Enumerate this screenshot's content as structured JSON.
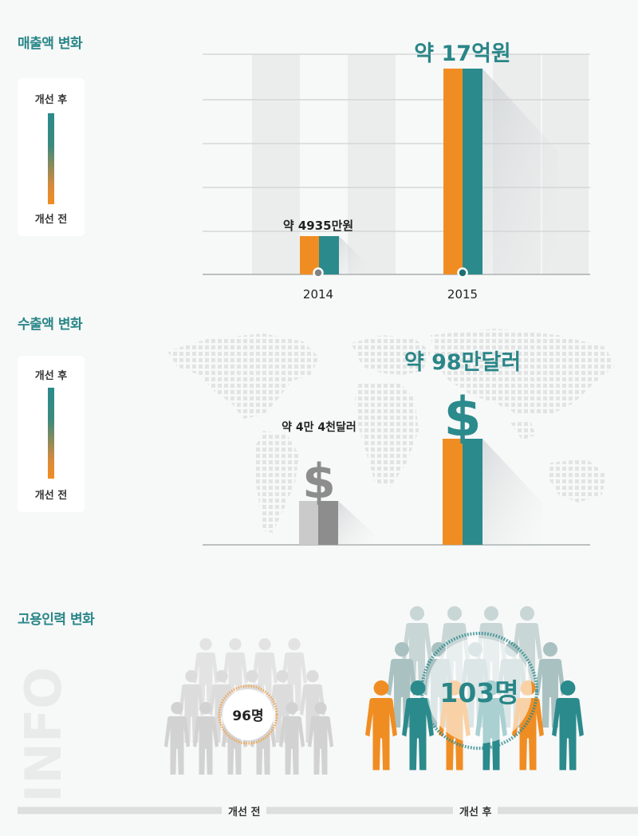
{
  "sections": {
    "revenue_title": "매출액 변화",
    "export_title": "수출액 변화",
    "employment_title": "고용인력 변화"
  },
  "legend": {
    "after": "개선 후",
    "before": "개선 전"
  },
  "side_text": "INFO",
  "colors": {
    "before": "#f08d22",
    "after": "#2b8a8c",
    "gray_light": "#c8c8c8",
    "gray_dark": "#8a8a8a",
    "title": "#2a8688"
  },
  "chart_data": [
    {
      "type": "bar",
      "id": "revenue",
      "categories": [
        "2014",
        "2015"
      ],
      "values_krw": [
        49350000,
        1700000000
      ],
      "data_labels": [
        "약 4935만원",
        "약 17억원"
      ],
      "grid": true
    },
    {
      "type": "bar",
      "id": "export",
      "categories": [
        "개선 전",
        "개선 후"
      ],
      "values_usd": [
        44000,
        980000
      ],
      "data_labels": [
        "약 4만 4천달러",
        "약 98만달러"
      ],
      "symbol": "$"
    },
    {
      "type": "pictogram",
      "id": "employment",
      "categories": [
        "개선 전",
        "개선 후"
      ],
      "values": [
        96,
        103
      ],
      "data_labels": [
        "96명",
        "103명"
      ]
    }
  ]
}
